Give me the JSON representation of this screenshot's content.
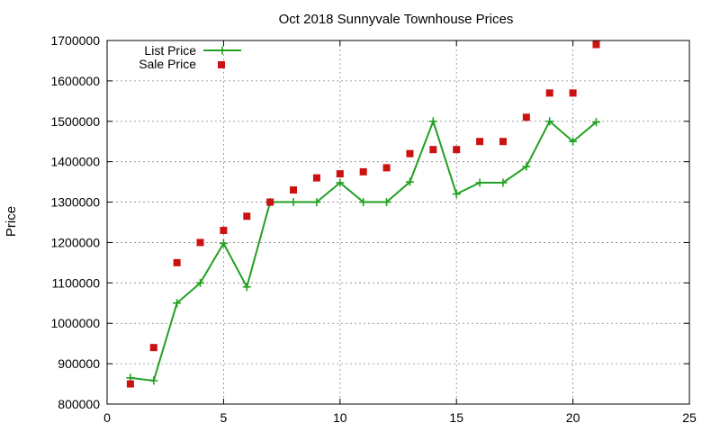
{
  "chart_data": {
    "type": "line",
    "title": "Oct 2018 Sunnyvale Townhouse Prices",
    "xlabel": "",
    "ylabel": "Price",
    "xlim": [
      0,
      25
    ],
    "ylim": [
      800000,
      1700000
    ],
    "xticks": [
      0,
      5,
      10,
      15,
      20,
      25
    ],
    "yticks": [
      800000,
      900000,
      1000000,
      1100000,
      1200000,
      1300000,
      1400000,
      1500000,
      1600000,
      1700000
    ],
    "grid": true,
    "legend_position": "top-left",
    "series": [
      {
        "name": "List Price",
        "style": "line-plus",
        "color": "#22a022",
        "x": [
          1,
          2,
          3,
          4,
          5,
          6,
          7,
          8,
          9,
          10,
          11,
          12,
          13,
          14,
          15,
          16,
          17,
          18,
          19,
          20,
          21
        ],
        "y": [
          865000,
          858000,
          1050000,
          1100000,
          1198000,
          1090000,
          1300000,
          1300000,
          1300000,
          1348000,
          1300000,
          1300000,
          1350000,
          1500000,
          1320000,
          1348000,
          1348000,
          1388000,
          1500000,
          1450000,
          1498000
        ]
      },
      {
        "name": "Sale Price",
        "style": "square-markers",
        "color": "#cc1111",
        "x": [
          1,
          2,
          3,
          4,
          5,
          6,
          7,
          8,
          9,
          10,
          11,
          12,
          13,
          14,
          15,
          16,
          17,
          18,
          19,
          20,
          21
        ],
        "y": [
          850000,
          940000,
          1150000,
          1200000,
          1230000,
          1265000,
          1300000,
          1330000,
          1360000,
          1370000,
          1375000,
          1385000,
          1420000,
          1430000,
          1430000,
          1450000,
          1450000,
          1510000,
          1570000,
          1570000,
          1690000
        ]
      }
    ]
  }
}
